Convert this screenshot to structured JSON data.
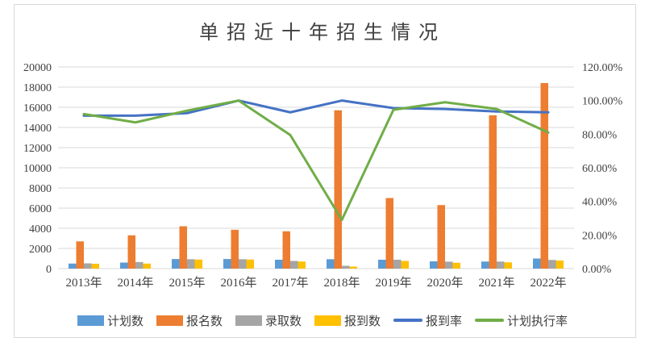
{
  "window": {
    "background": "#FFFFFF",
    "border_color": "#D9D9D9",
    "text_color": "#404040"
  },
  "chart_data": {
    "type": "bar",
    "subtype": "combo-clustered-bar-with-lines",
    "title": "单招近十年招生情况",
    "categories": [
      "2013年",
      "2014年",
      "2015年",
      "2016年",
      "2017年",
      "2018年",
      "2019年",
      "2020年",
      "2021年",
      "2022年"
    ],
    "bar_series": [
      {
        "id": "plan-count",
        "name": "计划数",
        "color": "#5B9BD5",
        "values": [
          500,
          600,
          950,
          950,
          880,
          930,
          880,
          720,
          700,
          1000
        ]
      },
      {
        "id": "applicant-count",
        "name": "报名数",
        "color": "#ED7D31",
        "values": [
          2700,
          3300,
          4200,
          3850,
          3700,
          15700,
          7000,
          6300,
          15200,
          18400
        ]
      },
      {
        "id": "admitted-count",
        "name": "录取数",
        "color": "#A5A5A5",
        "values": [
          520,
          650,
          930,
          930,
          760,
          280,
          880,
          690,
          700,
          860
        ]
      },
      {
        "id": "reported-count",
        "name": "报到数",
        "color": "#FFC000",
        "values": [
          480,
          500,
          900,
          900,
          700,
          200,
          760,
          580,
          620,
          800
        ]
      }
    ],
    "line_series": [
      {
        "id": "report-rate",
        "name": "报到率",
        "color": "#4472C4",
        "values_pct": [
          91,
          91,
          92.5,
          100,
          93,
          100,
          95.5,
          95,
          93.5,
          93
        ]
      },
      {
        "id": "plan-execution-rate",
        "name": "计划执行率",
        "color": "#70AD47",
        "values_pct": [
          92,
          87,
          94,
          100,
          79.5,
          29,
          94.5,
          99,
          95,
          81
        ]
      }
    ],
    "axes": {
      "left": {
        "min": 0,
        "max": 20000,
        "step": 2000,
        "tick_labels": [
          "0",
          "2000",
          "4000",
          "6000",
          "8000",
          "10000",
          "12000",
          "14000",
          "16000",
          "18000",
          "20000"
        ]
      },
      "right": {
        "min": 0,
        "max": 120,
        "step": 20,
        "tick_labels": [
          "0.00%",
          "20.00%",
          "40.00%",
          "60.00%",
          "80.00%",
          "100.00%",
          "120.00%"
        ]
      }
    },
    "grid": {
      "horizontal": true,
      "color": "#D9D9D9"
    },
    "legend_position": "bottom"
  }
}
